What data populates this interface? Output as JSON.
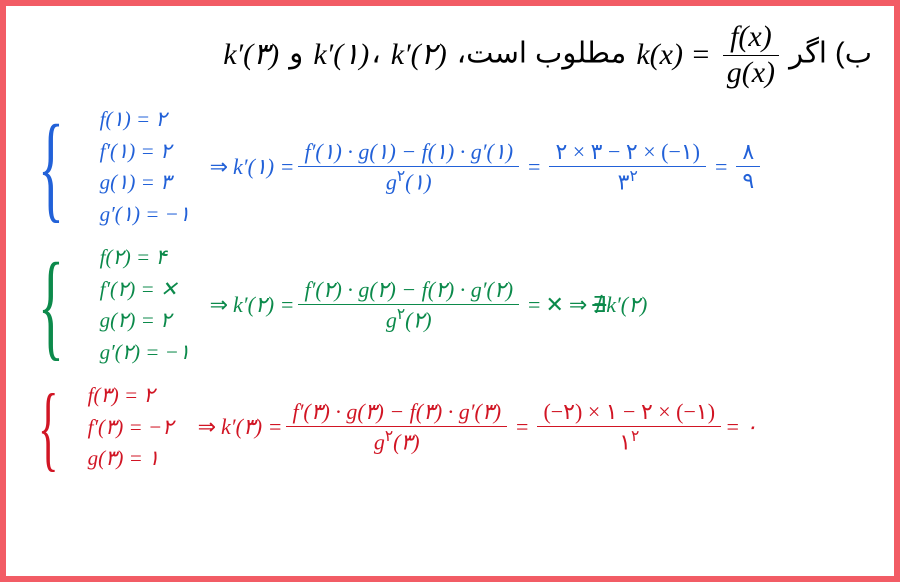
{
  "colors": {
    "border": "#f25c65",
    "blue": "#2261d8",
    "green": "#0c8a4b",
    "red": "#d11524",
    "text": "#000000",
    "bg": "#ffffff"
  },
  "question": {
    "lead": "ب) اگر",
    "lhs": "k(x) =",
    "frac_num": "f(x)",
    "frac_den": "g(x)",
    "mid": "مطلوب است،",
    "k1": "k′(۱)",
    "sep1": "،",
    "k2": "k′(۲)",
    "sep2": "و",
    "k3": "k′(۳)"
  },
  "blocks": [
    {
      "color": "blue",
      "givens": [
        "f(۱) = ۲",
        "f′(۱) = ۲",
        "g(۱) = ۳",
        "g′(۱) = −۱"
      ],
      "result_lhs": "k′(۱) =",
      "big_num": "f′(۱) · g(۱) − f(۱) · g′(۱)",
      "big_den": "g۲(۱)",
      "step_num": "۲ × ۳ − ۲ × (−۱)",
      "step_den": "۳۲",
      "final_num": "۸",
      "final_den": "۹",
      "tail": ""
    },
    {
      "color": "green",
      "givens": [
        "f(۲) = ۴",
        "f′(۲) = ✕",
        "g(۲) = ۲",
        "g′(۲) = −۱"
      ],
      "result_lhs": "k′(۲) =",
      "big_num": "f′(۲) · g(۲) − f(۲) · g′(۲)",
      "big_den": "g۲(۲)",
      "step_num": "",
      "step_den": "",
      "final_num": "",
      "final_den": "",
      "tail_x": "✕",
      "tail_strike": "∄",
      "tail_after": "k′(۲)"
    },
    {
      "color": "red",
      "givens": [
        "f(۳) = ۲",
        "f′(۳) = −۲",
        "g(۳) = ۱"
      ],
      "result_lhs": "k′(۳) =",
      "big_num": "f′(۳) · g(۳) − f(۳) · g′(۳)",
      "big_den": "g۲(۳)",
      "step_num": "(−۲) × ۱ − ۲ × (−۱)",
      "step_den": "۱۲",
      "final_num": "",
      "final_den": "",
      "tail": "= ۰"
    }
  ]
}
